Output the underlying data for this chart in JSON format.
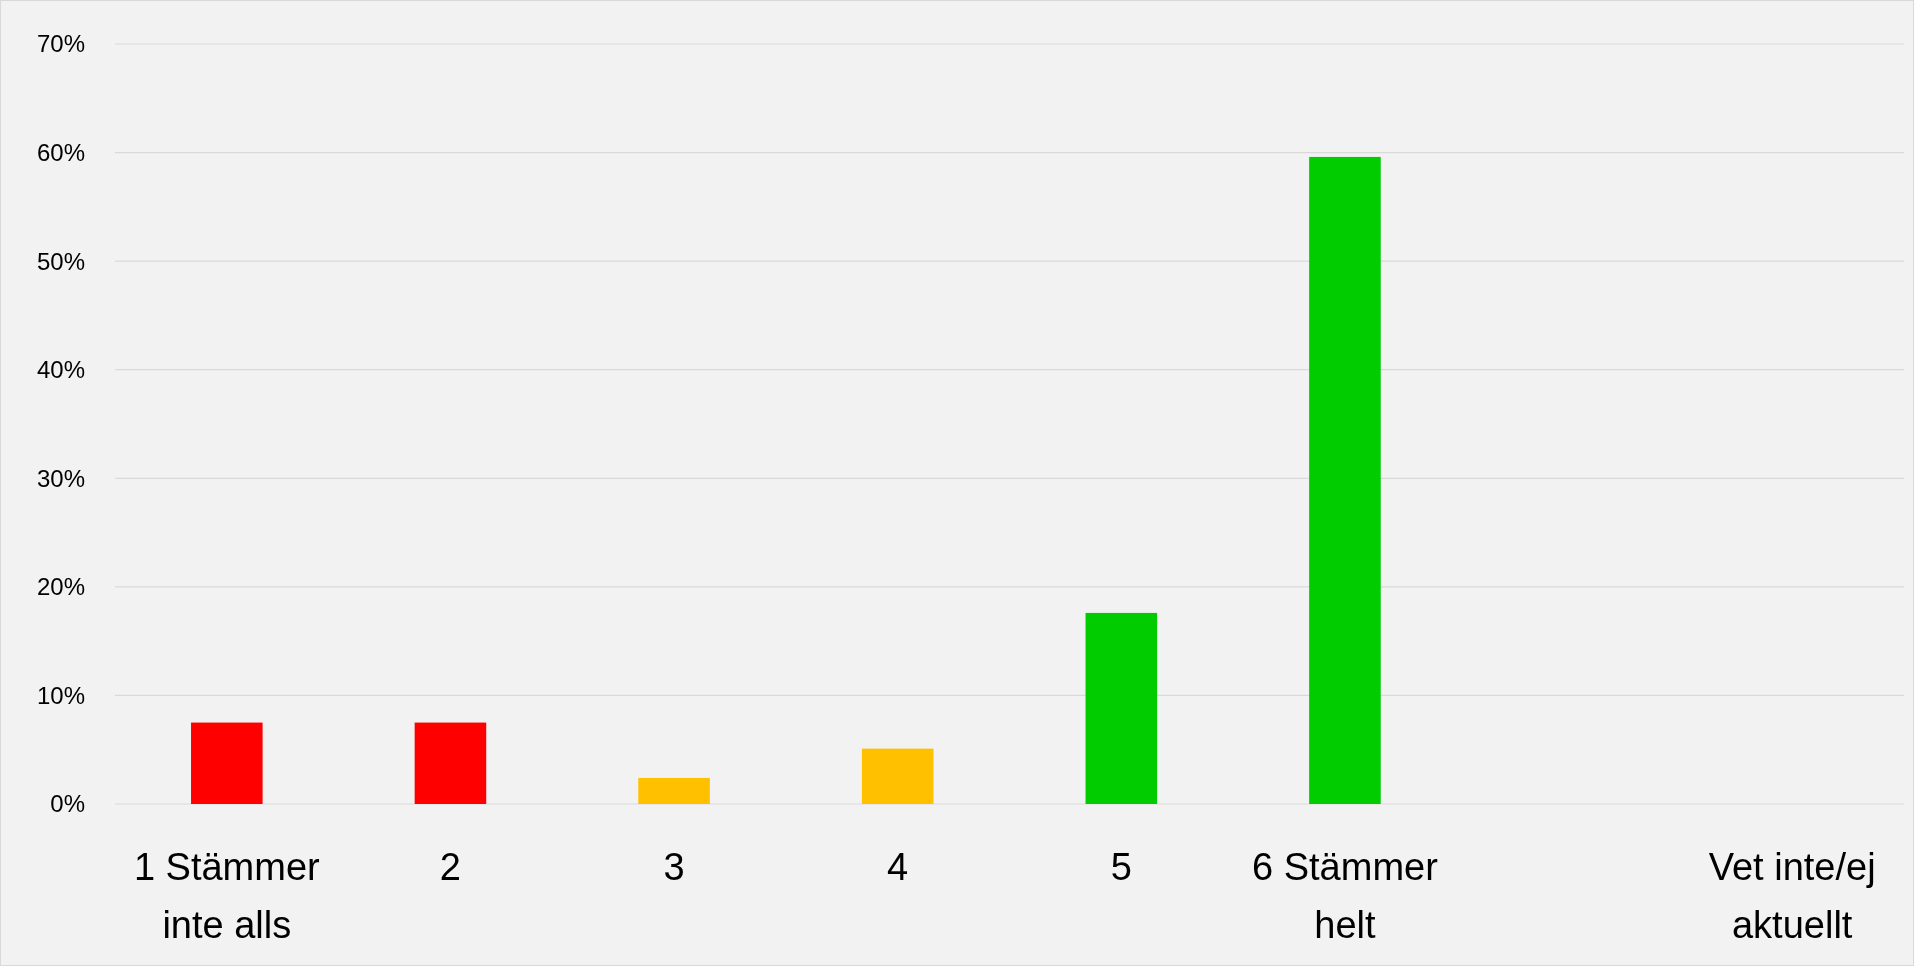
{
  "chart_data": {
    "type": "bar",
    "categories": [
      "1 Stämmer inte alls",
      "2",
      "3",
      "4",
      "5",
      "6 Stämmer helt",
      null,
      "Vet inte/ej aktuellt"
    ],
    "values": [
      7.5,
      7.5,
      2.4,
      5.1,
      17.6,
      59.6,
      0,
      0
    ],
    "colors": [
      "#ff0000",
      "#ff0000",
      "#ffc000",
      "#ffc000",
      "#00cc00",
      "#00cc00",
      "#00cc00",
      "#00cc00"
    ],
    "ylim": [
      0,
      70
    ],
    "yticks": [
      {
        "value": 0,
        "label": "0%"
      },
      {
        "value": 10,
        "label": "10%"
      },
      {
        "value": 20,
        "label": "20%"
      },
      {
        "value": 30,
        "label": "30%"
      },
      {
        "value": 40,
        "label": "40%"
      },
      {
        "value": 50,
        "label": "50%"
      },
      {
        "value": 60,
        "label": "60%"
      },
      {
        "value": 70,
        "label": "70%"
      }
    ],
    "grid": "y"
  }
}
